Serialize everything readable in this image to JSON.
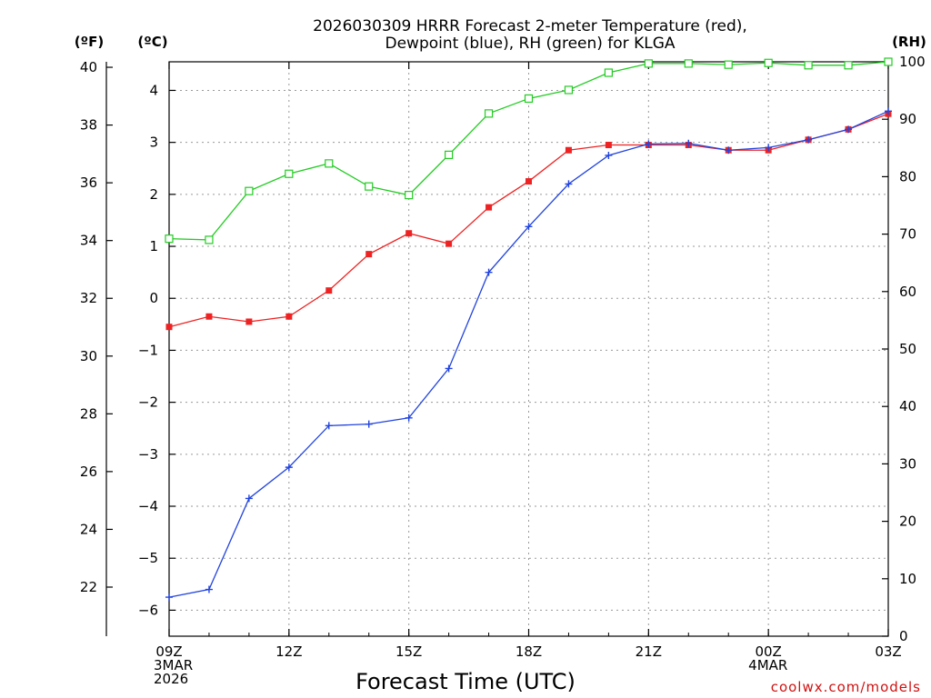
{
  "chart_data": {
    "type": "line",
    "title": [
      "2026030309 HRRR Forecast 2-meter Temperature (red),",
      "Dewpoint (blue), RH (green) for KLGA"
    ],
    "xlabel": "Forecast Time (UTC)",
    "credit": "coolwx.com/models",
    "unit_labels": {
      "fahrenheit": "(ºF)",
      "celsius": "(ºC)",
      "rh": "(RH)"
    },
    "x_hours": [
      0,
      1,
      2,
      3,
      4,
      5,
      6,
      7,
      8,
      9,
      10,
      11,
      12,
      13,
      14,
      15,
      16,
      17,
      18
    ],
    "x_range": [
      0,
      18
    ],
    "x_ticks": [
      {
        "hour": 0,
        "lines": [
          "09Z",
          "3MAR",
          "2026"
        ]
      },
      {
        "hour": 3,
        "lines": [
          "12Z"
        ]
      },
      {
        "hour": 6,
        "lines": [
          "15Z"
        ]
      },
      {
        "hour": 9,
        "lines": [
          "18Z"
        ]
      },
      {
        "hour": 12,
        "lines": [
          "21Z"
        ]
      },
      {
        "hour": 15,
        "lines": [
          "00Z",
          "4MAR"
        ]
      },
      {
        "hour": 18,
        "lines": [
          "03Z"
        ]
      }
    ],
    "celsius_range": [
      -6.5,
      4.55
    ],
    "celsius_ticks": [
      "4",
      "3",
      "2",
      "1",
      "0",
      "−1",
      "−2",
      "−3",
      "−4",
      "−5",
      "−6"
    ],
    "fahrenheit_ticks": [
      "40",
      "38",
      "36",
      "34",
      "32",
      "30",
      "28",
      "26",
      "24",
      "22"
    ],
    "rh_range": [
      0,
      100
    ],
    "rh_ticks": [
      "100",
      "90",
      "80",
      "70",
      "60",
      "50",
      "40",
      "30",
      "20",
      "10",
      "0"
    ],
    "series": [
      {
        "name": "2-meter Temperature",
        "unit": "C",
        "color": "#ee2222",
        "marker": "filled-square",
        "values": [
          -0.55,
          -0.35,
          -0.45,
          -0.35,
          0.15,
          0.85,
          1.25,
          1.05,
          1.75,
          2.25,
          2.85,
          2.95,
          2.95,
          2.95,
          2.85,
          2.85,
          3.05,
          3.25,
          3.55
        ]
      },
      {
        "name": "Dewpoint",
        "unit": "C",
        "color": "#2244dd",
        "marker": "plus",
        "values": [
          -5.75,
          -5.6,
          -3.85,
          -3.25,
          -2.45,
          -2.42,
          -2.3,
          -1.35,
          0.5,
          1.38,
          2.2,
          2.75,
          2.97,
          2.98,
          2.85,
          2.9,
          3.05,
          3.25,
          3.6
        ]
      },
      {
        "name": "RH",
        "unit": "%",
        "color": "#22cc22",
        "marker": "open-square",
        "values": [
          69.2,
          69.0,
          77.5,
          80.5,
          82.3,
          78.3,
          76.8,
          83.8,
          91.0,
          93.6,
          95.1,
          98.1,
          99.7,
          99.7,
          99.5,
          99.8,
          99.4,
          99.4,
          100
        ]
      }
    ]
  }
}
